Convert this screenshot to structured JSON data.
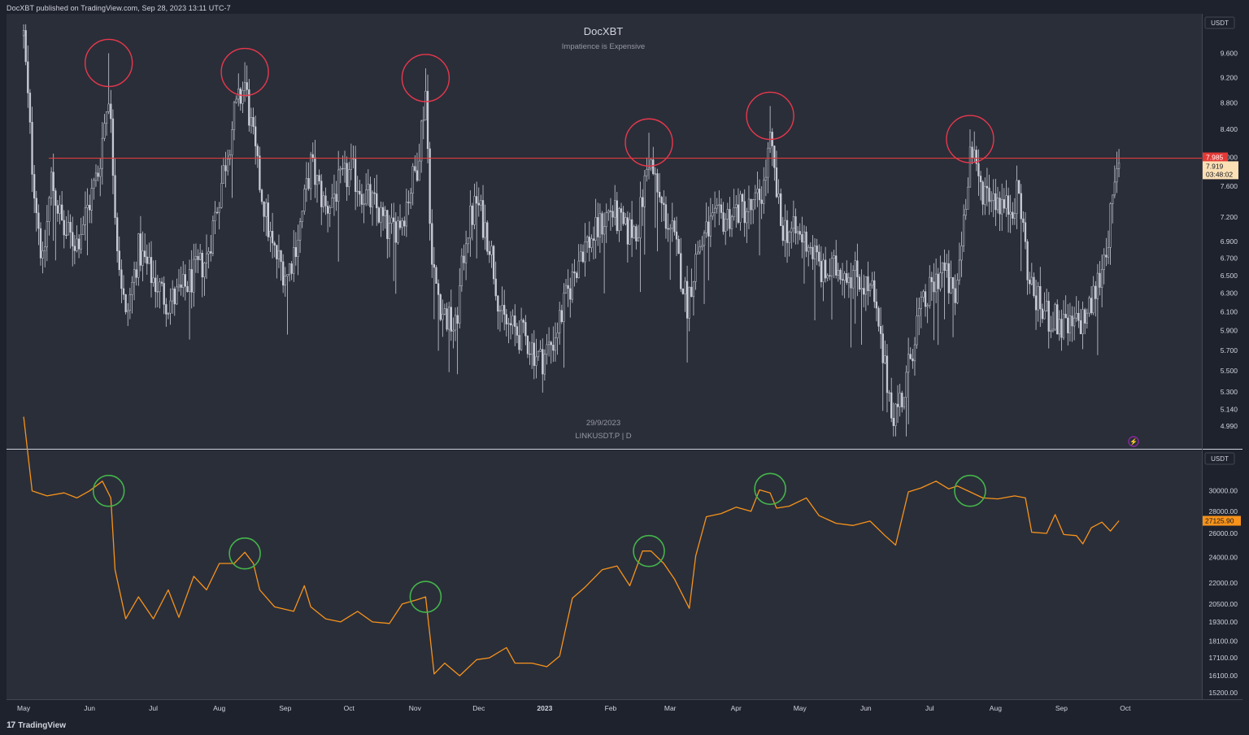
{
  "header": {
    "published_text": "DocXBT published on TradingView.com, Sep 28, 2023 13:11 UTC-7"
  },
  "colors": {
    "background": "#1e222d",
    "pane": "#2a2e39",
    "candle": "#c8ccd6",
    "resistance_line": "#e03b3b",
    "red_circle": "#e8384c",
    "green_circle": "#44b44a",
    "btc_line": "#f7931a",
    "price_tag_red": "#e53935",
    "price_tag_light": "#fbe0b5",
    "price_tag_orange": "#f7931a"
  },
  "chart_meta": {
    "title": "DocXBT",
    "subtitle": "Impatience is Expensive",
    "watermark_date": "29/9/2023",
    "watermark_symbol": "LINKUSDT.P | D",
    "currency_top": "USDT",
    "currency_bottom": "USDT",
    "tag_resistance": "7.985",
    "tag_last_price": "7.919",
    "tag_countdown": "03:48:02",
    "tag_btc": "27125.90",
    "lightning_icon": "lightning-icon"
  },
  "chart_data": [
    {
      "type": "candlestick",
      "symbol": "LINKUSDT.P | D",
      "y_scale": "log",
      "ylim": [
        4.85,
        10.2
      ],
      "y_ticks": [
        "9.600",
        "9.200",
        "8.800",
        "8.400",
        "8.000",
        "7.600",
        "7.200",
        "6.900",
        "6.700",
        "6.500",
        "6.300",
        "6.100",
        "5.900",
        "5.700",
        "5.500",
        "5.300",
        "5.140",
        "4.990"
      ],
      "x_ticks": [
        "May",
        "Jun",
        "Jul",
        "Aug",
        "Sep",
        "Oct",
        "Nov",
        "Dec",
        "2023",
        "Feb",
        "Mar",
        "Apr",
        "May",
        "Jun",
        "Jul",
        "Aug",
        "Sep",
        "Oct"
      ],
      "resistance_level": 7.985,
      "last_price": 7.919,
      "marked_highs": [
        {
          "x": "2022-06-10",
          "y": 9.6
        },
        {
          "x": "2022-08-13",
          "y": 9.45
        },
        {
          "x": "2022-11-06",
          "y": 9.35
        },
        {
          "x": "2023-02-19",
          "y": 8.35
        },
        {
          "x": "2023-04-17",
          "y": 8.75
        },
        {
          "x": "2023-07-20",
          "y": 8.4
        }
      ],
      "close_path": [
        [
          "2022-05-01",
          9.9
        ],
        [
          "2022-05-05",
          7.9
        ],
        [
          "2022-05-10",
          6.6
        ],
        [
          "2022-05-14",
          7.7
        ],
        [
          "2022-05-20",
          7.0
        ],
        [
          "2022-05-26",
          6.9
        ],
        [
          "2022-06-01",
          7.4
        ],
        [
          "2022-06-05",
          7.8
        ],
        [
          "2022-06-10",
          9.0
        ],
        [
          "2022-06-14",
          6.9
        ],
        [
          "2022-06-18",
          6.0
        ],
        [
          "2022-06-24",
          6.8
        ],
        [
          "2022-06-30",
          6.5
        ],
        [
          "2022-07-08",
          6.2
        ],
        [
          "2022-07-14",
          6.3
        ],
        [
          "2022-07-20",
          6.5
        ],
        [
          "2022-07-26",
          6.7
        ],
        [
          "2022-08-01",
          7.5
        ],
        [
          "2022-08-08",
          8.6
        ],
        [
          "2022-08-13",
          9.1
        ],
        [
          "2022-08-19",
          7.8
        ],
        [
          "2022-08-26",
          6.8
        ],
        [
          "2022-09-02",
          6.5
        ],
        [
          "2022-09-08",
          7.1
        ],
        [
          "2022-09-13",
          7.9
        ],
        [
          "2022-09-20",
          7.3
        ],
        [
          "2022-09-26",
          7.6
        ],
        [
          "2022-10-02",
          7.8
        ],
        [
          "2022-10-08",
          7.5
        ],
        [
          "2022-10-14",
          7.3
        ],
        [
          "2022-10-20",
          7.0
        ],
        [
          "2022-10-26",
          7.2
        ],
        [
          "2022-11-02",
          7.9
        ],
        [
          "2022-11-06",
          9.0
        ],
        [
          "2022-11-09",
          6.6
        ],
        [
          "2022-11-14",
          6.1
        ],
        [
          "2022-11-20",
          5.9
        ],
        [
          "2022-11-25",
          7.0
        ],
        [
          "2022-11-30",
          7.4
        ],
        [
          "2022-12-06",
          6.9
        ],
        [
          "2022-12-12",
          6.0
        ],
        [
          "2022-12-18",
          5.9
        ],
        [
          "2022-12-24",
          5.8
        ],
        [
          "2022-12-30",
          5.6
        ],
        [
          "2023-01-05",
          5.8
        ],
        [
          "2023-01-12",
          6.3
        ],
        [
          "2023-01-18",
          6.8
        ],
        [
          "2023-01-25",
          7.0
        ],
        [
          "2023-02-01",
          7.3
        ],
        [
          "2023-02-08",
          7.0
        ],
        [
          "2023-02-14",
          7.1
        ],
        [
          "2023-02-19",
          8.0
        ],
        [
          "2023-02-24",
          7.4
        ],
        [
          "2023-03-02",
          7.0
        ],
        [
          "2023-03-09",
          6.2
        ],
        [
          "2023-03-14",
          6.8
        ],
        [
          "2023-03-20",
          7.1
        ],
        [
          "2023-03-27",
          7.2
        ],
        [
          "2023-04-02",
          7.3
        ],
        [
          "2023-04-09",
          7.3
        ],
        [
          "2023-04-14",
          7.6
        ],
        [
          "2023-04-17",
          8.2
        ],
        [
          "2023-04-22",
          7.1
        ],
        [
          "2023-04-28",
          7.0
        ],
        [
          "2023-05-05",
          6.9
        ],
        [
          "2023-05-12",
          6.5
        ],
        [
          "2023-05-20",
          6.6
        ],
        [
          "2023-05-28",
          6.5
        ],
        [
          "2023-06-04",
          6.3
        ],
        [
          "2023-06-10",
          5.5
        ],
        [
          "2023-06-14",
          5.1
        ],
        [
          "2023-06-19",
          5.3
        ],
        [
          "2023-06-25",
          6.0
        ],
        [
          "2023-07-01",
          6.3
        ],
        [
          "2023-07-07",
          6.6
        ],
        [
          "2023-07-13",
          6.2
        ],
        [
          "2023-07-17",
          7.2
        ],
        [
          "2023-07-20",
          8.1
        ],
        [
          "2023-07-25",
          7.6
        ],
        [
          "2023-07-31",
          7.5
        ],
        [
          "2023-08-06",
          7.3
        ],
        [
          "2023-08-12",
          7.5
        ],
        [
          "2023-08-17",
          6.4
        ],
        [
          "2023-08-23",
          6.1
        ],
        [
          "2023-08-29",
          6.0
        ],
        [
          "2023-09-04",
          5.9
        ],
        [
          "2023-09-10",
          6.0
        ],
        [
          "2023-09-14",
          6.1
        ],
        [
          "2023-09-19",
          6.5
        ],
        [
          "2023-09-23",
          7.0
        ],
        [
          "2023-09-28",
          7.92
        ]
      ]
    },
    {
      "type": "line",
      "symbol": "BTC",
      "y_scale": "log",
      "ylim": [
        15000,
        34000
      ],
      "y_ticks": [
        "30000.00",
        "28000.00",
        "26000.00",
        "24000.00",
        "22000.00",
        "20500.00",
        "19300.00",
        "18100.00",
        "17100.00",
        "16100.00",
        "15200.00"
      ],
      "last_value": 27125.9,
      "marked_points": [
        {
          "x": "2022-06-10",
          "y": 30000
        },
        {
          "x": "2022-08-13",
          "y": 24300
        },
        {
          "x": "2022-11-06",
          "y": 21000
        },
        {
          "x": "2023-02-19",
          "y": 24500
        },
        {
          "x": "2023-04-17",
          "y": 30200
        },
        {
          "x": "2023-07-20",
          "y": 30000
        }
      ],
      "values": [
        [
          "2022-05-01",
          38500
        ],
        [
          "2022-05-05",
          30000
        ],
        [
          "2022-05-12",
          29500
        ],
        [
          "2022-05-20",
          29800
        ],
        [
          "2022-05-26",
          29300
        ],
        [
          "2022-06-01",
          30000
        ],
        [
          "2022-06-07",
          31000
        ],
        [
          "2022-06-11",
          29300
        ],
        [
          "2022-06-13",
          23000
        ],
        [
          "2022-06-18",
          19500
        ],
        [
          "2022-06-24",
          21000
        ],
        [
          "2022-07-01",
          19500
        ],
        [
          "2022-07-08",
          21500
        ],
        [
          "2022-07-13",
          19600
        ],
        [
          "2022-07-20",
          22500
        ],
        [
          "2022-07-26",
          21500
        ],
        [
          "2022-08-01",
          23500
        ],
        [
          "2022-08-08",
          23500
        ],
        [
          "2022-08-13",
          24400
        ],
        [
          "2022-08-17",
          23500
        ],
        [
          "2022-08-20",
          21500
        ],
        [
          "2022-08-27",
          20300
        ],
        [
          "2022-09-05",
          20000
        ],
        [
          "2022-09-10",
          21800
        ],
        [
          "2022-09-13",
          20300
        ],
        [
          "2022-09-20",
          19500
        ],
        [
          "2022-09-27",
          19300
        ],
        [
          "2022-10-05",
          20000
        ],
        [
          "2022-10-12",
          19300
        ],
        [
          "2022-10-20",
          19200
        ],
        [
          "2022-10-26",
          20500
        ],
        [
          "2022-11-02",
          20800
        ],
        [
          "2022-11-06",
          21000
        ],
        [
          "2022-11-08",
          18500
        ],
        [
          "2022-11-10",
          16200
        ],
        [
          "2022-11-15",
          16800
        ],
        [
          "2022-11-22",
          16100
        ],
        [
          "2022-11-30",
          17000
        ],
        [
          "2022-12-06",
          17100
        ],
        [
          "2022-12-14",
          17700
        ],
        [
          "2022-12-18",
          16800
        ],
        [
          "2022-12-26",
          16800
        ],
        [
          "2023-01-02",
          16600
        ],
        [
          "2023-01-08",
          17200
        ],
        [
          "2023-01-14",
          20900
        ],
        [
          "2023-01-20",
          21700
        ],
        [
          "2023-01-28",
          23000
        ],
        [
          "2023-02-04",
          23300
        ],
        [
          "2023-02-10",
          21800
        ],
        [
          "2023-02-16",
          24500
        ],
        [
          "2023-02-20",
          24500
        ],
        [
          "2023-02-26",
          23500
        ],
        [
          "2023-03-03",
          22300
        ],
        [
          "2023-03-10",
          20200
        ],
        [
          "2023-03-13",
          24100
        ],
        [
          "2023-03-18",
          27500
        ],
        [
          "2023-03-25",
          27800
        ],
        [
          "2023-04-01",
          28400
        ],
        [
          "2023-04-08",
          28000
        ],
        [
          "2023-04-12",
          30100
        ],
        [
          "2023-04-17",
          29800
        ],
        [
          "2023-04-20",
          28300
        ],
        [
          "2023-04-26",
          28500
        ],
        [
          "2023-05-04",
          29300
        ],
        [
          "2023-05-10",
          27600
        ],
        [
          "2023-05-18",
          26900
        ],
        [
          "2023-05-26",
          26700
        ],
        [
          "2023-06-03",
          27100
        ],
        [
          "2023-06-10",
          25800
        ],
        [
          "2023-06-15",
          25000
        ],
        [
          "2023-06-21",
          29900
        ],
        [
          "2023-06-27",
          30300
        ],
        [
          "2023-07-04",
          31000
        ],
        [
          "2023-07-10",
          30200
        ],
        [
          "2023-07-14",
          30500
        ],
        [
          "2023-07-20",
          29900
        ],
        [
          "2023-07-26",
          29300
        ],
        [
          "2023-08-02",
          29200
        ],
        [
          "2023-08-10",
          29500
        ],
        [
          "2023-08-15",
          29300
        ],
        [
          "2023-08-18",
          26100
        ],
        [
          "2023-08-25",
          26000
        ],
        [
          "2023-08-29",
          27700
        ],
        [
          "2023-09-02",
          25900
        ],
        [
          "2023-09-08",
          25800
        ],
        [
          "2023-09-11",
          25100
        ],
        [
          "2023-09-15",
          26500
        ],
        [
          "2023-09-20",
          27000
        ],
        [
          "2023-09-24",
          26200
        ],
        [
          "2023-09-28",
          27125.9
        ]
      ]
    }
  ],
  "footer": {
    "brand": "TradingView",
    "logo_text": "17"
  }
}
